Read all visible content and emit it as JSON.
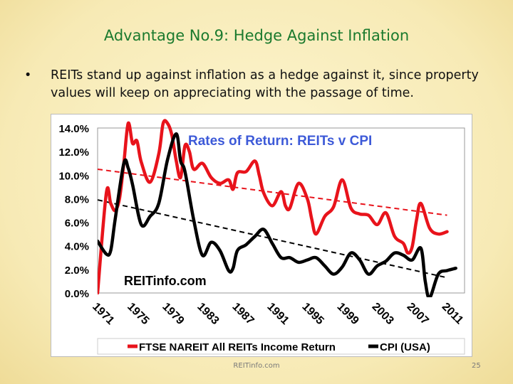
{
  "slide": {
    "title": "Advantage No.9: Hedge Against Inflation",
    "bullet_marker": "•",
    "bullet": "REITs stand up against inflation as a hedge against it, since property values will keep on appreciating with the passage of time.",
    "footer": "REITinfo.com",
    "page_number": "25"
  },
  "colors": {
    "reit": "#e8131b",
    "cpi": "#000000",
    "title_green": "#1b7a2e",
    "chart_title_blue": "#3d5ad8"
  },
  "chart_data": {
    "type": "line",
    "title": "Rates of Return: REITs v CPI",
    "watermark": "REITinfo.com",
    "ylim": [
      0,
      14
    ],
    "xlim": [
      1971,
      2013
    ],
    "y_ticks": [
      "0.0%",
      "2.0%",
      "4.0%",
      "6.0%",
      "8.0%",
      "10.0%",
      "12.0%",
      "14.0%"
    ],
    "y_tick_values": [
      0,
      2,
      4,
      6,
      8,
      10,
      12,
      14
    ],
    "x_ticks": [
      "1971",
      "1975",
      "1979",
      "1983",
      "1987",
      "1991",
      "1995",
      "1999",
      "2003",
      "2007",
      "2011"
    ],
    "x_tick_values": [
      1971,
      1975,
      1979,
      1983,
      1987,
      1991,
      1995,
      1999,
      2003,
      2007,
      2011
    ],
    "grid": false,
    "legend_position": "bottom",
    "series": [
      {
        "name": "FTSE NAREIT All REITs Income Return",
        "color": "#e8131b",
        "x": [
          1971,
          1972,
          1972.5,
          1973,
          1973.5,
          1974,
          1974.5,
          1975,
          1975.5,
          1976,
          1977,
          1978,
          1978.5,
          1979,
          1979.5,
          1980,
          1980.5,
          1981,
          1981.5,
          1982,
          1983,
          1984,
          1985,
          1986,
          1986.5,
          1987,
          1988,
          1989,
          1989.5,
          1990,
          1991,
          1992,
          1992.5,
          1993,
          1994,
          1995,
          1995.5,
          1996,
          1997,
          1998,
          1999,
          2000,
          2001,
          2002,
          2003,
          2004,
          2005,
          2006,
          2006.5,
          2007,
          2007.5,
          2008,
          2009,
          2010,
          2011
        ],
        "values": [
          0,
          8.5,
          7.6,
          7.0,
          8.0,
          11.0,
          14.4,
          12.7,
          12.9,
          11.1,
          9.4,
          11.8,
          14.4,
          14.4,
          13.4,
          11.2,
          9.8,
          12.5,
          12.0,
          10.5,
          11.0,
          9.8,
          9.3,
          9.6,
          8.8,
          10.2,
          10.3,
          11.2,
          10.0,
          8.5,
          7.4,
          8.6,
          7.4,
          7.2,
          9.3,
          8.0,
          6.3,
          5.0,
          6.5,
          7.3,
          9.6,
          7.2,
          6.7,
          6.6,
          5.8,
          6.8,
          4.8,
          4.2,
          3.4,
          3.9,
          6.2,
          7.6,
          5.5,
          5.0,
          5.2
        ]
      },
      {
        "name": "CPI (USA)",
        "color": "#000000",
        "x": [
          1971,
          1972,
          1972.5,
          1973,
          1974,
          1974.5,
          1975,
          1976,
          1977,
          1978,
          1979,
          1980,
          1980.5,
          1981,
          1982,
          1983,
          1984,
          1985,
          1986,
          1986.5,
          1987,
          1988,
          1989,
          1990,
          1991,
          1992,
          1993,
          1994,
          1995,
          1996,
          1997,
          1998,
          1999,
          2000,
          2001,
          2002,
          2003,
          2004,
          2005,
          2006,
          2007,
          2008,
          2008.5,
          2009,
          2010,
          2011,
          2012
        ],
        "values": [
          4.4,
          3.3,
          3.6,
          6.2,
          11.0,
          10.6,
          9.2,
          5.8,
          6.5,
          7.6,
          11.3,
          13.5,
          11.2,
          10.3,
          6.2,
          3.2,
          4.3,
          3.6,
          1.9,
          2.1,
          3.6,
          4.1,
          4.8,
          5.4,
          4.2,
          3.0,
          3.0,
          2.6,
          2.8,
          3.0,
          2.3,
          1.6,
          2.2,
          3.4,
          2.8,
          1.6,
          2.3,
          2.7,
          3.4,
          3.2,
          2.8,
          3.8,
          1.0,
          -0.4,
          1.6,
          1.9,
          2.1
        ]
      }
    ],
    "trendlines": [
      {
        "series": "FTSE NAREIT All REITs Income Return",
        "x": [
          1971,
          2011
        ],
        "values": [
          10.5,
          6.6
        ]
      },
      {
        "series": "CPI (USA)",
        "x": [
          1971,
          2011
        ],
        "values": [
          7.9,
          1.3
        ]
      }
    ]
  }
}
